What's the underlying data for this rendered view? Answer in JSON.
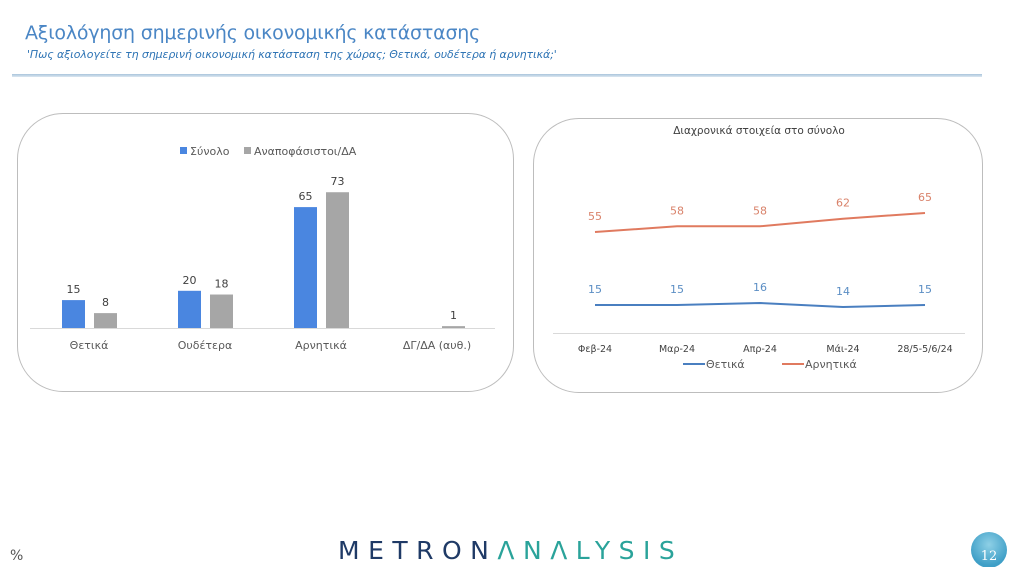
{
  "header": {
    "title": "Αξιολόγηση σημερινής οικονομικής κατάστασης",
    "subtitle": "'Πως αξιολογείτε τη σημερινή οικονομική κατάσταση της χώρας; Θετικά, ουδέτερα ή αρνητικά;'"
  },
  "footer": {
    "unit": "%",
    "brand_part1": "METRON",
    "brand_part2": "ΛNΛLYSIS",
    "page_number": "12"
  },
  "colors": {
    "blue": "#4a86e0",
    "grey": "#a6a6a6",
    "line_blue": "#4a7fc0",
    "line_orange": "#e07a5f"
  },
  "chart_data": [
    {
      "type": "bar",
      "title": "",
      "categories": [
        "Θετικά",
        "Ουδέτερα",
        "Αρνητικά",
        "ΔΓ/ΔΑ (αυθ.)"
      ],
      "series": [
        {
          "name": "Σύνολο",
          "values": [
            15,
            20,
            65,
            null
          ]
        },
        {
          "name": "Αναποφάσιστοι/ΔΑ",
          "values": [
            8,
            18,
            73,
            1
          ]
        }
      ],
      "legend": [
        "Σύνολο",
        "Αναποφάσιστοι/ΔΑ"
      ],
      "legend_position": "top",
      "xlabel": "",
      "ylabel": "",
      "ylim": [
        0,
        80
      ],
      "grid": false
    },
    {
      "type": "line",
      "title": "Διαχρονικά στοιχεία στο σύνολο",
      "categories": [
        "Φεβ-24",
        "Μαρ-24",
        "Απρ-24",
        "Μάι-24",
        "28/5-5/6/24"
      ],
      "series": [
        {
          "name": "Θετικά",
          "values": [
            15,
            15,
            16,
            14,
            15
          ]
        },
        {
          "name": "Αρνητικά",
          "values": [
            55,
            58,
            58,
            62,
            65
          ]
        }
      ],
      "legend": [
        "Θετικά",
        "Αρνητικά"
      ],
      "legend_position": "bottom",
      "xlabel": "",
      "ylabel": "",
      "ylim": [
        0,
        70
      ],
      "grid": false
    }
  ]
}
